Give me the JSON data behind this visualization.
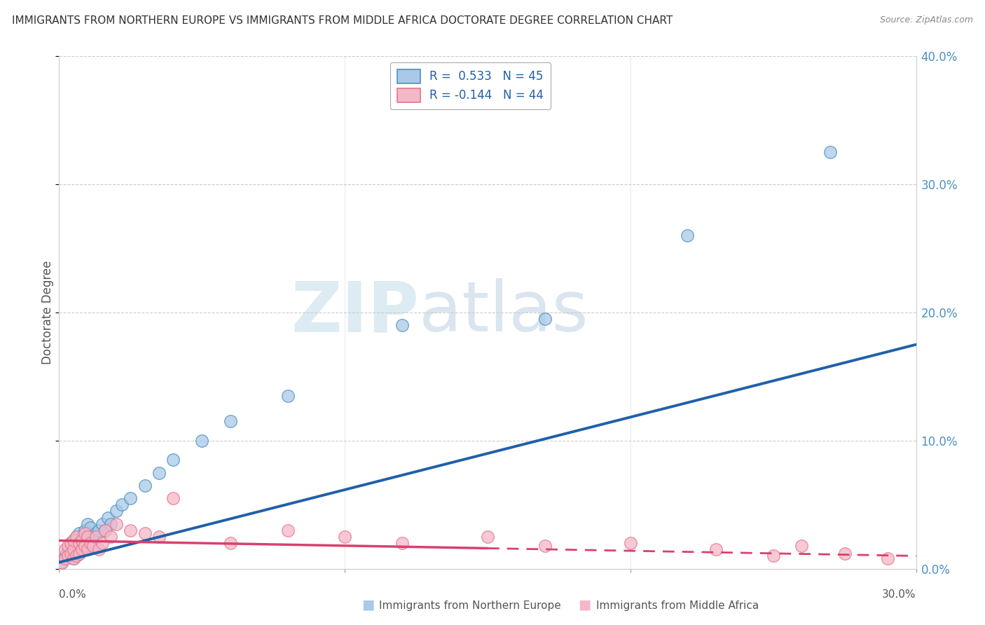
{
  "title": "IMMIGRANTS FROM NORTHERN EUROPE VS IMMIGRANTS FROM MIDDLE AFRICA DOCTORATE DEGREE CORRELATION CHART",
  "source": "Source: ZipAtlas.com",
  "ylabel": "Doctorate Degree",
  "legend1_label": "R =  0.533   N = 45",
  "legend2_label": "R = -0.144   N = 44",
  "legend1_name": "Immigrants from Northern Europe",
  "legend2_name": "Immigrants from Middle Africa",
  "blue_color": "#aac9e8",
  "pink_color": "#f4b8c8",
  "blue_edge_color": "#4a90c4",
  "pink_edge_color": "#e8748a",
  "blue_line_color": "#2060a8",
  "pink_line_color": "#d94070",
  "watermark_zip": "ZIP",
  "watermark_atlas": "atlas",
  "background_color": "#ffffff",
  "xlim": [
    0.0,
    0.3
  ],
  "ylim": [
    0.0,
    0.4
  ],
  "ytick_vals": [
    0.0,
    0.1,
    0.2,
    0.3,
    0.4
  ],
  "blue_scatter_x": [
    0.001,
    0.002,
    0.002,
    0.003,
    0.003,
    0.004,
    0.004,
    0.004,
    0.005,
    0.005,
    0.005,
    0.006,
    0.006,
    0.006,
    0.007,
    0.007,
    0.007,
    0.008,
    0.008,
    0.009,
    0.009,
    0.01,
    0.01,
    0.011,
    0.011,
    0.012,
    0.013,
    0.014,
    0.015,
    0.016,
    0.017,
    0.018,
    0.02,
    0.022,
    0.025,
    0.03,
    0.035,
    0.04,
    0.05,
    0.06,
    0.08,
    0.12,
    0.17,
    0.22,
    0.27
  ],
  "blue_scatter_y": [
    0.005,
    0.008,
    0.01,
    0.012,
    0.015,
    0.01,
    0.018,
    0.02,
    0.008,
    0.015,
    0.022,
    0.01,
    0.018,
    0.025,
    0.012,
    0.02,
    0.028,
    0.015,
    0.025,
    0.015,
    0.03,
    0.02,
    0.035,
    0.018,
    0.032,
    0.025,
    0.028,
    0.03,
    0.035,
    0.03,
    0.04,
    0.035,
    0.045,
    0.05,
    0.055,
    0.065,
    0.075,
    0.085,
    0.1,
    0.115,
    0.135,
    0.19,
    0.195,
    0.26,
    0.325
  ],
  "pink_scatter_x": [
    0.001,
    0.002,
    0.002,
    0.003,
    0.003,
    0.004,
    0.004,
    0.005,
    0.005,
    0.005,
    0.006,
    0.006,
    0.007,
    0.007,
    0.008,
    0.008,
    0.009,
    0.009,
    0.01,
    0.01,
    0.011,
    0.012,
    0.013,
    0.014,
    0.015,
    0.016,
    0.018,
    0.02,
    0.025,
    0.03,
    0.035,
    0.04,
    0.06,
    0.08,
    0.1,
    0.12,
    0.15,
    0.17,
    0.2,
    0.23,
    0.25,
    0.26,
    0.275,
    0.29
  ],
  "pink_scatter_y": [
    0.005,
    0.008,
    0.015,
    0.01,
    0.018,
    0.012,
    0.02,
    0.008,
    0.015,
    0.022,
    0.01,
    0.025,
    0.012,
    0.02,
    0.015,
    0.022,
    0.018,
    0.028,
    0.015,
    0.025,
    0.02,
    0.018,
    0.025,
    0.015,
    0.02,
    0.03,
    0.025,
    0.035,
    0.03,
    0.028,
    0.025,
    0.055,
    0.02,
    0.03,
    0.025,
    0.02,
    0.025,
    0.018,
    0.02,
    0.015,
    0.01,
    0.018,
    0.012,
    0.008
  ],
  "blue_line_x0": 0.0,
  "blue_line_y0": 0.005,
  "blue_line_x1": 0.3,
  "blue_line_y1": 0.175,
  "pink_line_x0": 0.0,
  "pink_line_y0": 0.022,
  "pink_line_x1": 0.3,
  "pink_line_y1": 0.01
}
